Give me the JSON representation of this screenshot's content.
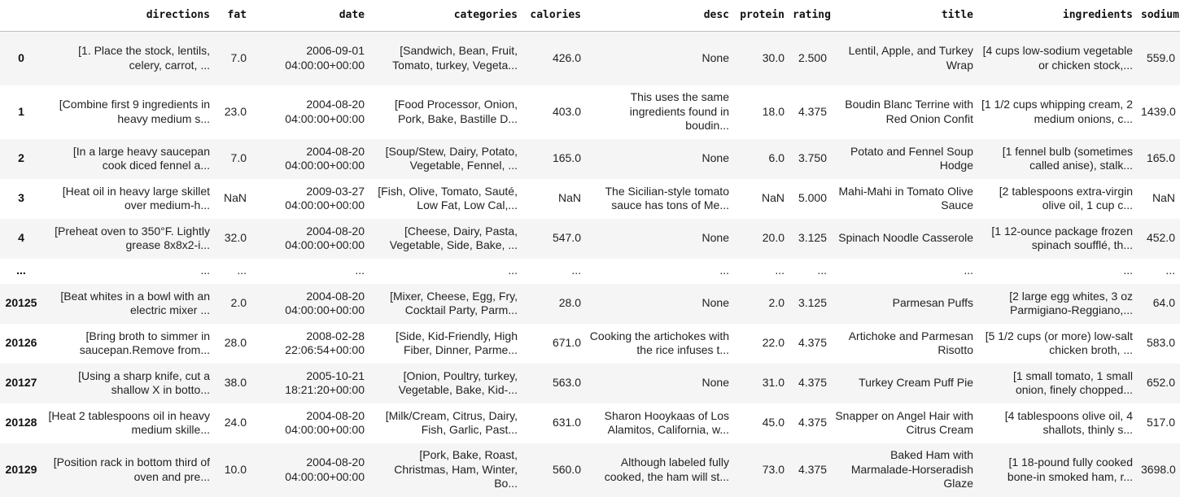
{
  "columns": [
    "",
    "directions",
    "fat",
    "date",
    "categories",
    "calories",
    "desc",
    "protein",
    "rating",
    "title",
    "ingredients",
    "sodium"
  ],
  "rows": [
    {
      "index": "0",
      "directions": "[1. Place the stock, lentils, celery, carrot, ...",
      "fat": "7.0",
      "date": "2006-09-01 04:00:00+00:00",
      "categories": "[Sandwich, Bean, Fruit, Tomato, turkey, Vegeta...",
      "calories": "426.0",
      "desc": "None",
      "protein": "30.0",
      "rating": "2.500",
      "title": "Lentil, Apple, and Turkey Wrap",
      "ingredients": "[4 cups low-sodium vegetable or chicken stock,...",
      "sodium": "559.0"
    },
    {
      "index": "1",
      "directions": "[Combine first 9 ingredients in heavy medium s...",
      "fat": "23.0",
      "date": "2004-08-20 04:00:00+00:00",
      "categories": "[Food Processor, Onion, Pork, Bake, Bastille D...",
      "calories": "403.0",
      "desc": "This uses the same ingredients found in boudin...",
      "protein": "18.0",
      "rating": "4.375",
      "title": "Boudin Blanc Terrine with Red Onion Confit",
      "ingredients": "[1 1/2 cups whipping cream, 2 medium onions, c...",
      "sodium": "1439.0"
    },
    {
      "index": "2",
      "directions": "[In a large heavy saucepan cook diced fennel a...",
      "fat": "7.0",
      "date": "2004-08-20 04:00:00+00:00",
      "categories": "[Soup/Stew, Dairy, Potato, Vegetable, Fennel, ...",
      "calories": "165.0",
      "desc": "None",
      "protein": "6.0",
      "rating": "3.750",
      "title": "Potato and Fennel Soup Hodge",
      "ingredients": "[1 fennel bulb (sometimes called anise), stalk...",
      "sodium": "165.0"
    },
    {
      "index": "3",
      "directions": "[Heat oil in heavy large skillet over medium-h...",
      "fat": "NaN",
      "date": "2009-03-27 04:00:00+00:00",
      "categories": "[Fish, Olive, Tomato, Sauté, Low Fat, Low Cal,...",
      "calories": "NaN",
      "desc": "The Sicilian-style tomato sauce has tons of Me...",
      "protein": "NaN",
      "rating": "5.000",
      "title": "Mahi-Mahi in Tomato Olive Sauce",
      "ingredients": "[2 tablespoons extra-virgin olive oil, 1 cup c...",
      "sodium": "NaN"
    },
    {
      "index": "4",
      "directions": "[Preheat oven to 350°F. Lightly grease 8x8x2-i...",
      "fat": "32.0",
      "date": "2004-08-20 04:00:00+00:00",
      "categories": "[Cheese, Dairy, Pasta, Vegetable, Side, Bake, ...",
      "calories": "547.0",
      "desc": "None",
      "protein": "20.0",
      "rating": "3.125",
      "title": "Spinach Noodle Casserole",
      "ingredients": "[1 12-ounce package frozen spinach soufflé, th...",
      "sodium": "452.0"
    },
    {
      "index": "...",
      "directions": "...",
      "fat": "...",
      "date": "...",
      "categories": "...",
      "calories": "...",
      "desc": "...",
      "protein": "...",
      "rating": "...",
      "title": "...",
      "ingredients": "...",
      "sodium": "..."
    },
    {
      "index": "20125",
      "directions": "[Beat whites in a bowl with an electric mixer ...",
      "fat": "2.0",
      "date": "2004-08-20 04:00:00+00:00",
      "categories": "[Mixer, Cheese, Egg, Fry, Cocktail Party, Parm...",
      "calories": "28.0",
      "desc": "None",
      "protein": "2.0",
      "rating": "3.125",
      "title": "Parmesan Puffs",
      "ingredients": "[2 large egg whites, 3 oz Parmigiano-Reggiano,...",
      "sodium": "64.0"
    },
    {
      "index": "20126",
      "directions": "[Bring broth to simmer in saucepan.Remove from...",
      "fat": "28.0",
      "date": "2008-02-28 22:06:54+00:00",
      "categories": "[Side, Kid-Friendly, High Fiber, Dinner, Parme...",
      "calories": "671.0",
      "desc": "Cooking the artichokes with the rice infuses t...",
      "protein": "22.0",
      "rating": "4.375",
      "title": "Artichoke and Parmesan Risotto",
      "ingredients": "[5 1/2 cups (or more) low-salt chicken broth, ...",
      "sodium": "583.0"
    },
    {
      "index": "20127",
      "directions": "[Using a sharp knife, cut a shallow X in botto...",
      "fat": "38.0",
      "date": "2005-10-21 18:21:20+00:00",
      "categories": "[Onion, Poultry, turkey, Vegetable, Bake, Kid-...",
      "calories": "563.0",
      "desc": "None",
      "protein": "31.0",
      "rating": "4.375",
      "title": "Turkey Cream Puff Pie",
      "ingredients": "[1 small tomato, 1 small onion, finely chopped...",
      "sodium": "652.0"
    },
    {
      "index": "20128",
      "directions": "[Heat 2 tablespoons oil in heavy medium skille...",
      "fat": "24.0",
      "date": "2004-08-20 04:00:00+00:00",
      "categories": "[Milk/Cream, Citrus, Dairy, Fish, Garlic, Past...",
      "calories": "631.0",
      "desc": "Sharon Hooykaas of Los Alamitos, California, w...",
      "protein": "45.0",
      "rating": "4.375",
      "title": "Snapper on Angel Hair with Citrus Cream",
      "ingredients": "[4 tablespoons olive oil, 4 shallots, thinly s...",
      "sodium": "517.0"
    },
    {
      "index": "20129",
      "directions": "[Position rack in bottom third of oven and pre...",
      "fat": "10.0",
      "date": "2004-08-20 04:00:00+00:00",
      "categories": "[Pork, Bake, Roast, Christmas, Ham, Winter, Bo...",
      "calories": "560.0",
      "desc": "Although labeled fully cooked, the ham will st...",
      "protein": "73.0",
      "rating": "4.375",
      "title": "Baked Ham with Marmalade-Horseradish Glaze",
      "ingredients": "[1 18-pound fully cooked bone-in smoked ham, r...",
      "sodium": "3698.0"
    }
  ]
}
